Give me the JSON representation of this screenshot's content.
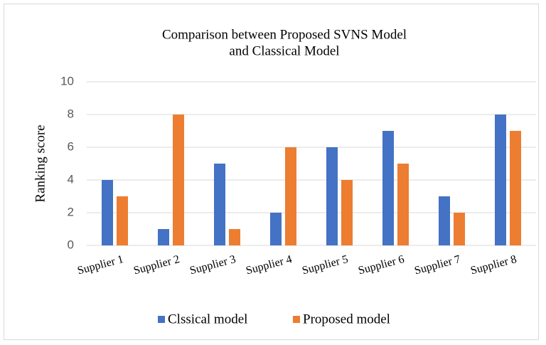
{
  "chart_data": {
    "type": "bar",
    "title": [
      "Comparison between Proposed SVNS Model",
      "and Classical Model"
    ],
    "y_label": "Ranking score",
    "categories": [
      "Supplier 1",
      "Supplier 2",
      "Supplier 3",
      "Supplier 4",
      "Supplier 5",
      "Supplier 6",
      "Supplier 7",
      "Supplier 8"
    ],
    "series": [
      {
        "name": "Clssical model",
        "color": "#4472c4",
        "values": [
          4,
          1,
          5,
          2,
          6,
          7,
          3,
          8
        ]
      },
      {
        "name": "Proposed model",
        "color": "#ed7d31",
        "values": [
          3,
          8,
          1,
          6,
          4,
          5,
          2,
          7
        ]
      }
    ],
    "ylim": [
      0,
      10
    ],
    "yticks": [
      0,
      2,
      4,
      6,
      8,
      10
    ],
    "grid": true,
    "legend": "bottom"
  }
}
